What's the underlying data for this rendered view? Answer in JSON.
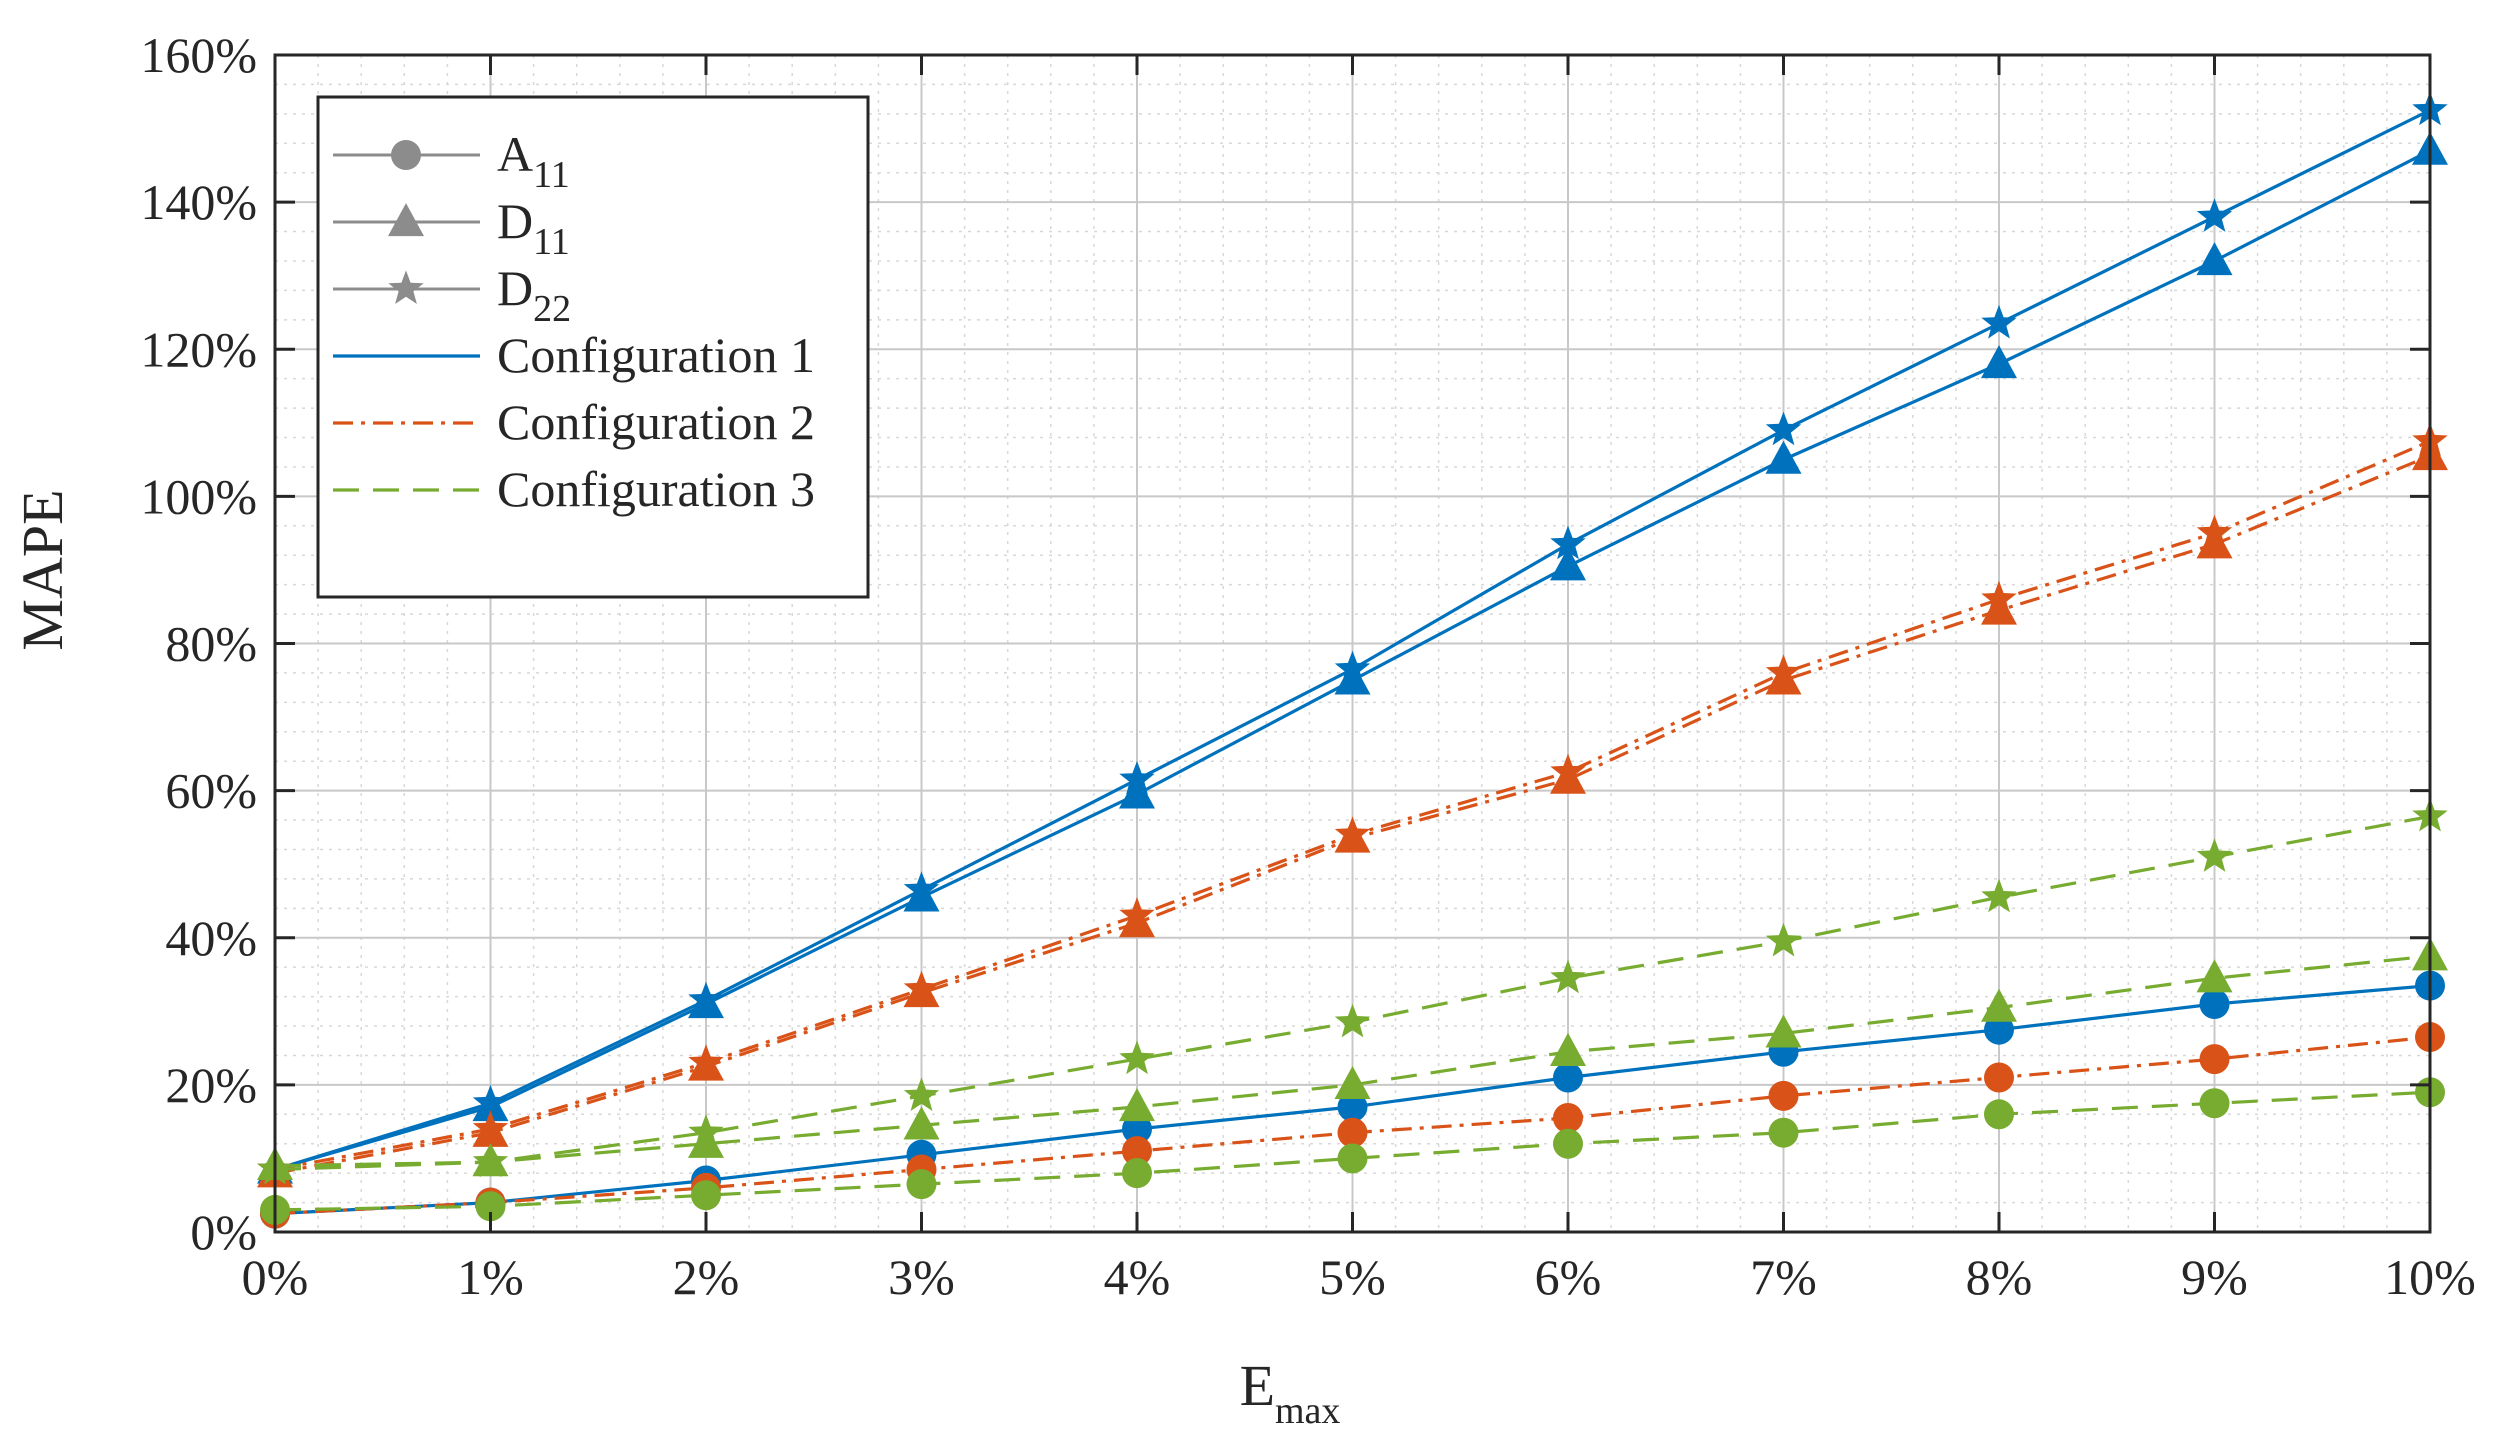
{
  "chart_data": {
    "type": "line",
    "xlabel": "E",
    "xlabel_sub": "max",
    "ylabel": "MAPE",
    "xlim": [
      0,
      10
    ],
    "ylim": [
      0,
      160
    ],
    "x_ticks": [
      0,
      1,
      2,
      3,
      4,
      5,
      6,
      7,
      8,
      9,
      10
    ],
    "x_tick_labels": [
      "0%",
      "1%",
      "2%",
      "3%",
      "4%",
      "5%",
      "6%",
      "7%",
      "8%",
      "9%",
      "10%"
    ],
    "y_ticks": [
      0,
      20,
      40,
      60,
      80,
      100,
      120,
      140,
      160
    ],
    "y_tick_labels": [
      "0%",
      "20%",
      "40%",
      "60%",
      "80%",
      "100%",
      "120%",
      "140%",
      "160%"
    ],
    "grid": true,
    "minor_grid": true,
    "legend_position": "top-left",
    "legend": [
      {
        "label": "A",
        "sub": "11",
        "kind": "marker",
        "marker": "circle"
      },
      {
        "label": "D",
        "sub": "11",
        "kind": "marker",
        "marker": "triangle"
      },
      {
        "label": "D",
        "sub": "22",
        "kind": "marker",
        "marker": "star"
      },
      {
        "label": "Configuration 1",
        "kind": "line",
        "config": "c1"
      },
      {
        "label": "Configuration 2",
        "kind": "line",
        "config": "c2"
      },
      {
        "label": "Configuration 3",
        "kind": "line",
        "config": "c3"
      }
    ],
    "configs": {
      "c1": {
        "name": "Configuration 1",
        "color": "#0072BD",
        "dash": ""
      },
      "c2": {
        "name": "Configuration 2",
        "color": "#D95319",
        "dash": "20,8,4,8"
      },
      "c3": {
        "name": "Configuration 3",
        "color": "#77AC30",
        "dash": "26,14"
      }
    },
    "legend_marker_color": "#8c8c8c",
    "x": [
      0,
      1,
      2,
      3,
      4,
      5,
      6,
      7,
      8,
      9,
      10
    ],
    "series": [
      {
        "name": "Configuration 1 - D22",
        "config": "c1",
        "metric": "D22",
        "marker": "star",
        "values": [
          8.5,
          17.5,
          31.5,
          46.5,
          61.5,
          76.5,
          93.5,
          109,
          123.5,
          138,
          152.5
        ]
      },
      {
        "name": "Configuration 1 - D11",
        "config": "c1",
        "metric": "D11",
        "marker": "triangle",
        "values": [
          8.5,
          17,
          31,
          45.5,
          59.5,
          75,
          90.5,
          105,
          118,
          132,
          147
        ]
      },
      {
        "name": "Configuration 1 - A11",
        "config": "c1",
        "metric": "A11",
        "marker": "circle",
        "values": [
          2.5,
          4,
          7,
          10.5,
          14,
          17,
          21,
          24.5,
          27.5,
          31,
          33.5
        ]
      },
      {
        "name": "Configuration 2 - D22",
        "config": "c2",
        "metric": "D22",
        "marker": "star",
        "values": [
          8.5,
          14,
          23,
          33,
          43,
          54,
          62.5,
          76,
          86,
          95,
          107.5
        ]
      },
      {
        "name": "Configuration 2 - D11",
        "config": "c2",
        "metric": "D11",
        "marker": "triangle",
        "values": [
          8,
          13.5,
          22.5,
          32.5,
          42,
          53.5,
          61.5,
          75,
          84.5,
          93.5,
          105.5
        ]
      },
      {
        "name": "Configuration 2 - A11",
        "config": "c2",
        "metric": "A11",
        "marker": "circle",
        "values": [
          2.5,
          4,
          6,
          8.5,
          11,
          13.5,
          15.5,
          18.5,
          21,
          23.5,
          26.5
        ]
      },
      {
        "name": "Configuration 3 - D22",
        "config": "c3",
        "metric": "D22",
        "marker": "star",
        "values": [
          8.5,
          9.5,
          13.5,
          18.5,
          23.5,
          28.5,
          34.5,
          39.5,
          45.5,
          51,
          56.5
        ]
      },
      {
        "name": "Configuration 3 - D11",
        "config": "c3",
        "metric": "D11",
        "marker": "triangle",
        "values": [
          9,
          9.5,
          12,
          14.5,
          17,
          20,
          24.5,
          27,
          30.5,
          34.5,
          37.5
        ]
      },
      {
        "name": "Configuration 3 - A11",
        "config": "c3",
        "metric": "A11",
        "marker": "circle",
        "values": [
          3,
          3.5,
          5,
          6.5,
          8,
          10,
          12,
          13.5,
          16,
          17.5,
          19
        ]
      }
    ]
  }
}
